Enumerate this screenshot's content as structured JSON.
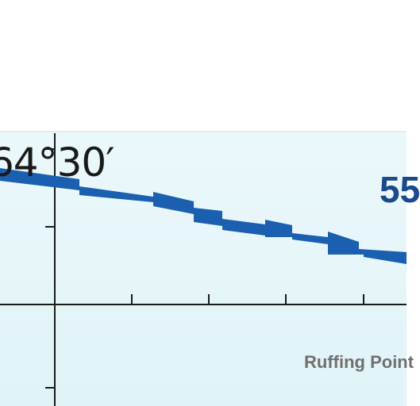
{
  "map": {
    "coordinate_label": "64°30′",
    "route_number": "55",
    "place_label": "Ruffing Point",
    "colors": {
      "background_top": "#ffffff",
      "sea_tint": "#e4f5f9",
      "route": "#1a5fb0",
      "route_label": "#1a4a8c",
      "grid": "#1a1a1a",
      "place_text": "#707070"
    }
  }
}
